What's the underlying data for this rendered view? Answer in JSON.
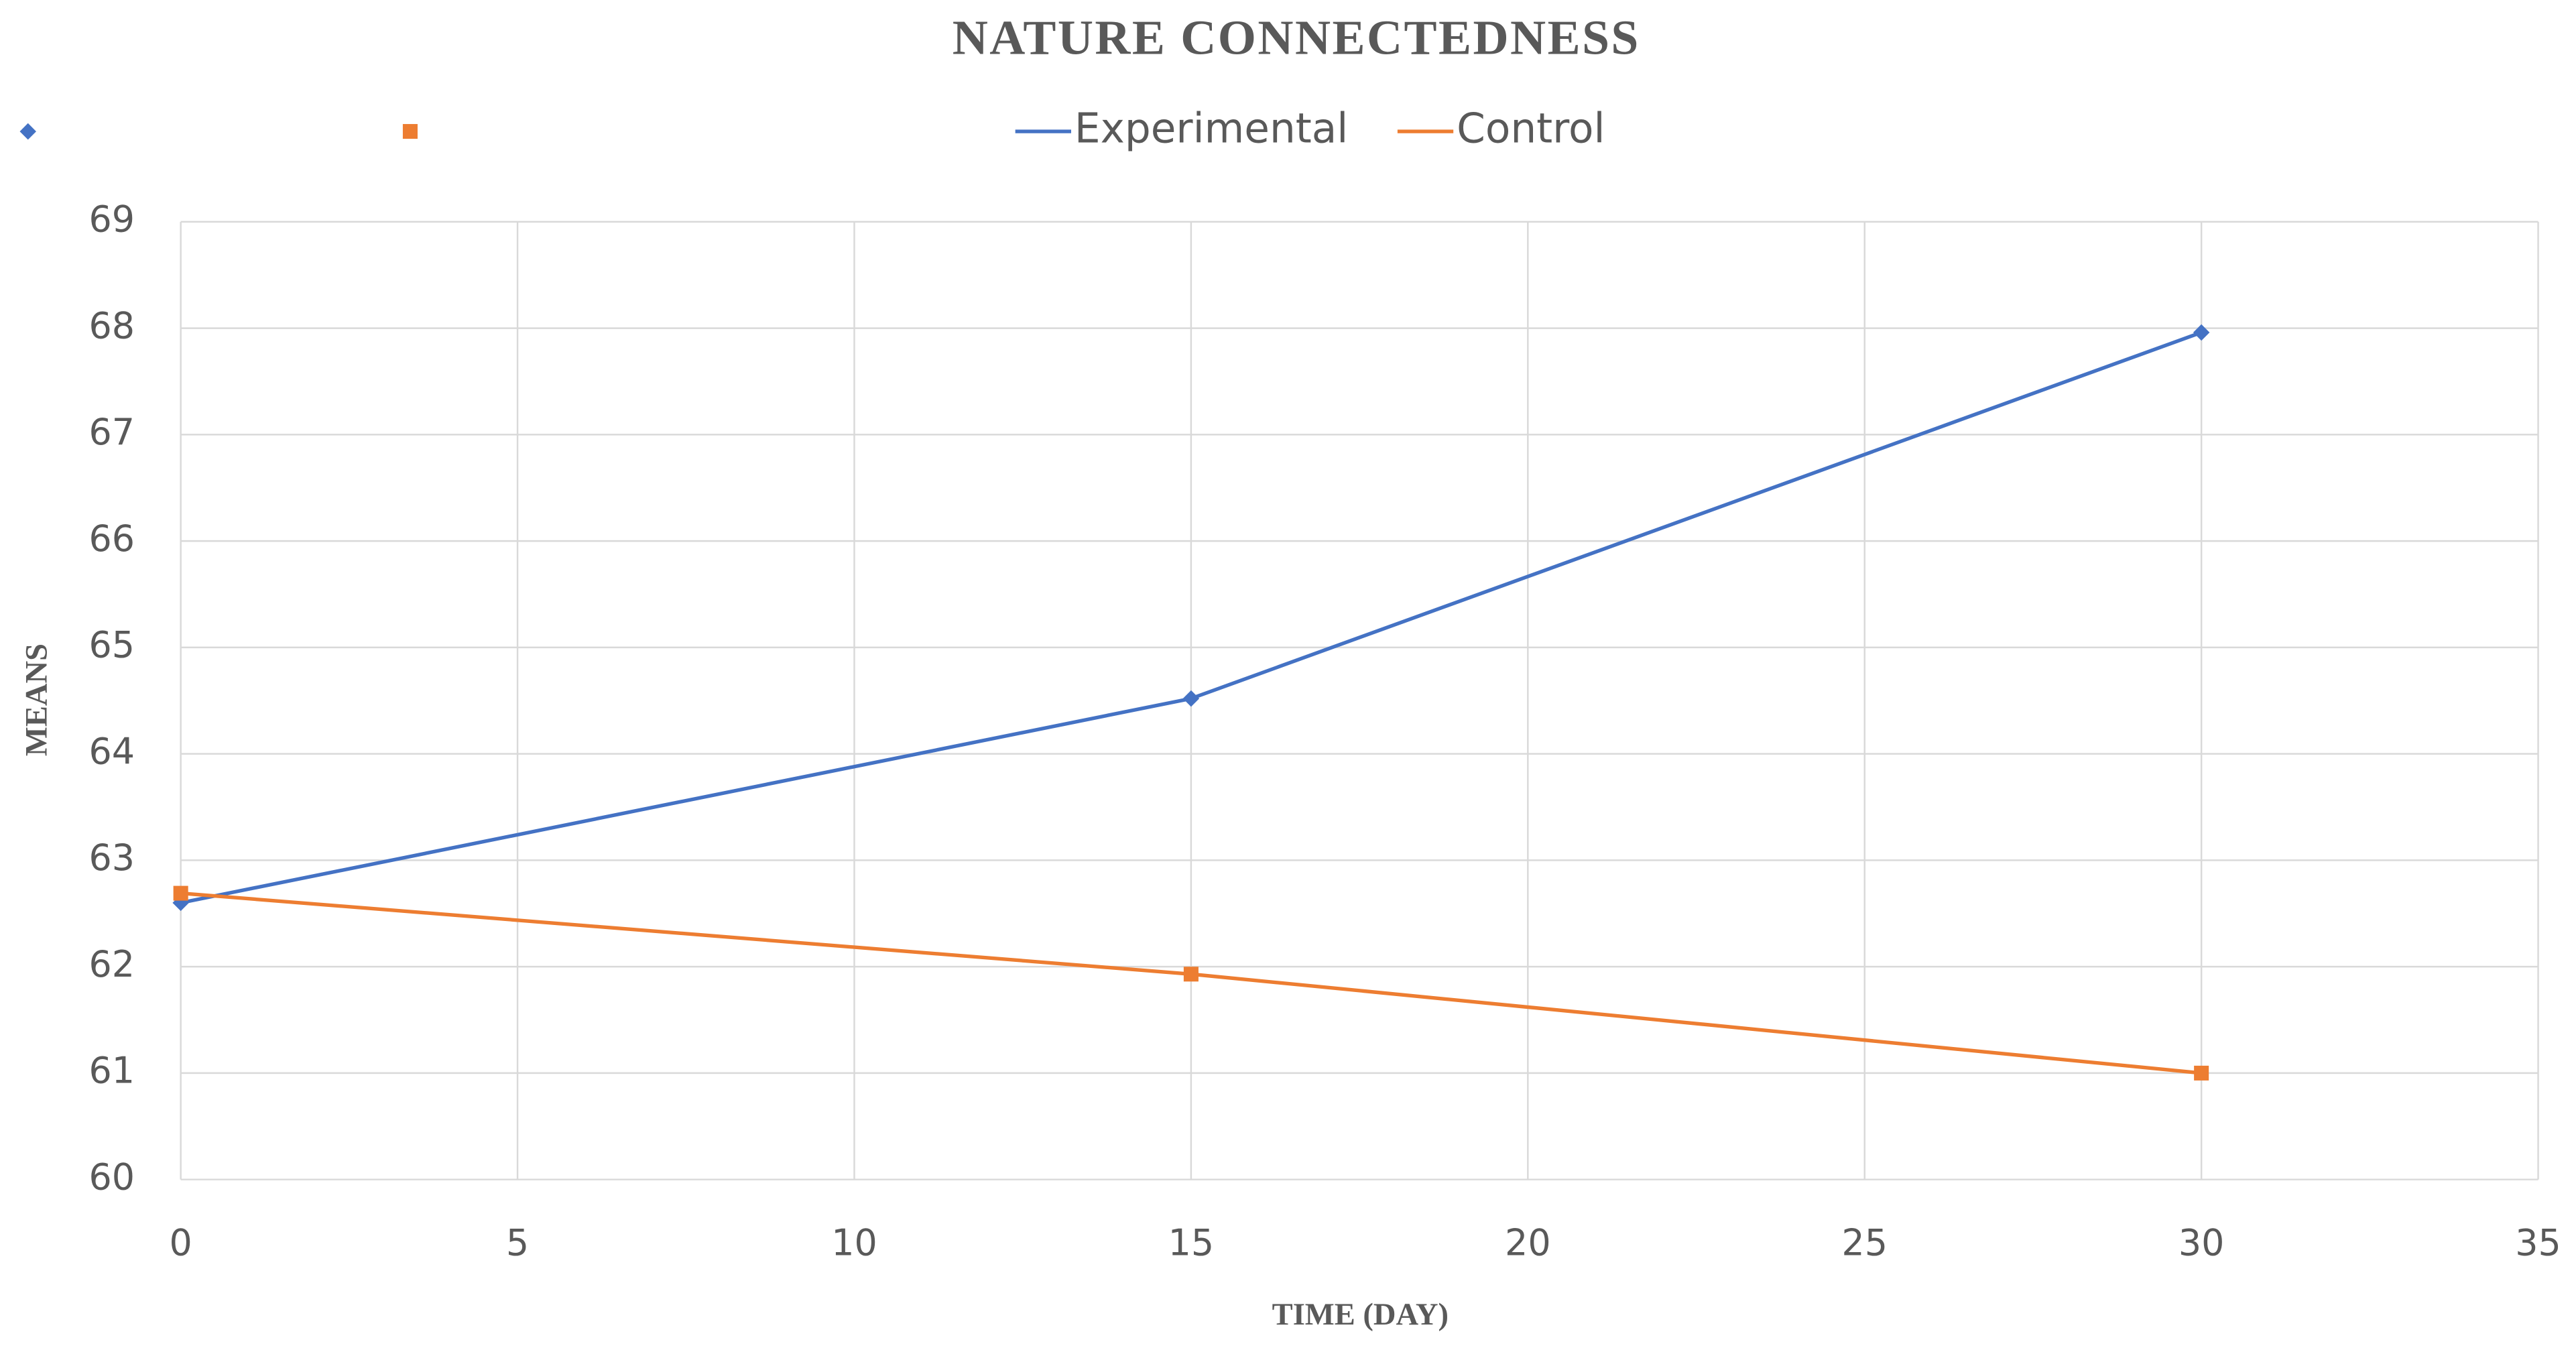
{
  "chart_data": {
    "type": "line",
    "title": "NATURE CONNECTEDNESS",
    "x_label": "TIME (DAY)",
    "y_label": "MEANS",
    "x": [
      0,
      15,
      30
    ],
    "series": [
      {
        "name": "Experimental",
        "color": "#4472c4",
        "marker": "diamond",
        "values": [
          62.6,
          64.52,
          67.96
        ]
      },
      {
        "name": "Control",
        "color": "#ed7d31",
        "marker": "square",
        "values": [
          62.69,
          61.93,
          61.0
        ]
      }
    ],
    "xlim": [
      0,
      35
    ],
    "xticks": [
      0,
      5,
      10,
      15,
      20,
      25,
      30,
      35
    ],
    "ylim": [
      60,
      69
    ],
    "yticks": [
      60,
      61,
      62,
      63,
      64,
      65,
      66,
      67,
      68,
      69
    ],
    "grid": true,
    "legend": "top"
  }
}
